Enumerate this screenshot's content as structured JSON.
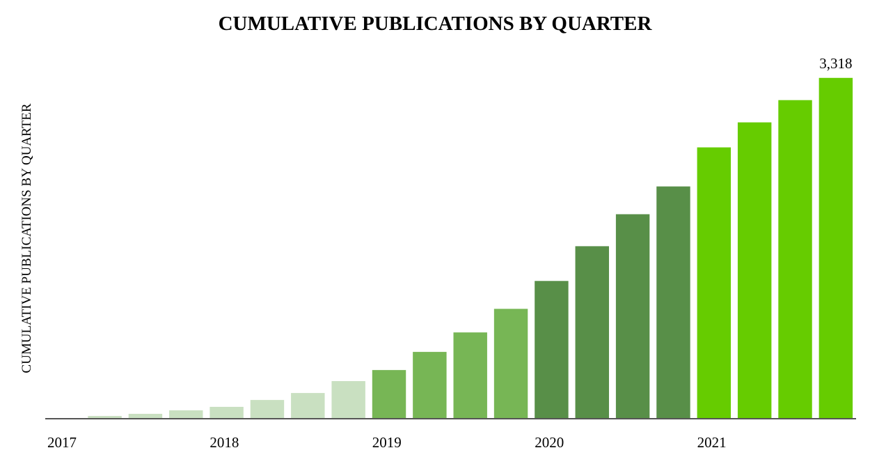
{
  "chart_data": {
    "type": "bar",
    "title": "CUMULATIVE PUBLICATIONS BY QUARTER",
    "y_label": "CUMULATIVE PUBLICATIONS BY QUARTER",
    "categories": [
      "2017",
      null,
      null,
      null,
      "2018",
      null,
      null,
      null,
      "2019",
      null,
      null,
      null,
      "2020",
      null,
      null,
      null,
      "2021",
      null,
      null,
      null
    ],
    "values": [
      0,
      20,
      41,
      75,
      109,
      176,
      244,
      360,
      468,
      645,
      835,
      1065,
      1337,
      1676,
      1988,
      2259,
      2640,
      2884,
      3101,
      3318
    ],
    "value_labels": [
      null,
      null,
      null,
      null,
      null,
      null,
      null,
      null,
      null,
      null,
      null,
      null,
      null,
      null,
      null,
      null,
      null,
      null,
      null,
      "3,318"
    ],
    "colors": [
      "#c9e0c1",
      "#c9e0c1",
      "#c9e0c1",
      "#c9e0c1",
      "#c9e0c1",
      "#c9e0c1",
      "#c9e0c1",
      "#c9e0c1",
      "#77b655",
      "#77b655",
      "#77b655",
      "#77b655",
      "#588f48",
      "#588f48",
      "#588f48",
      "#588f48",
      "#66cc00",
      "#66cc00",
      "#66cc00",
      "#66cc00"
    ],
    "ylim": [
      0,
      3500
    ]
  }
}
